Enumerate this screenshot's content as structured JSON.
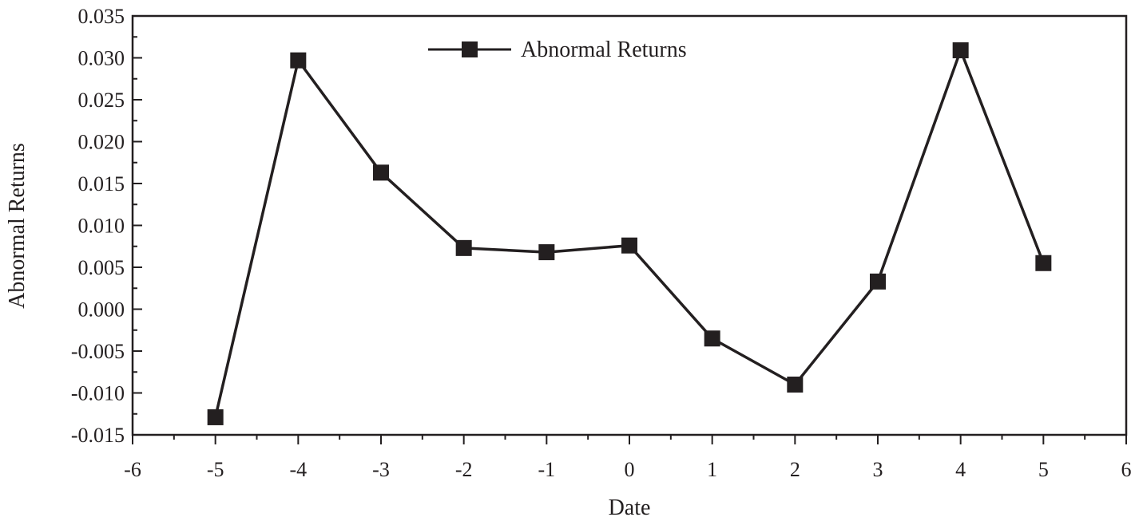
{
  "chart_data": {
    "type": "line",
    "xlabel": "Date",
    "ylabel": "Abnormal Returns",
    "xlim": [
      -6,
      6
    ],
    "ylim": [
      -0.015,
      0.035
    ],
    "x_ticks": [
      "-6",
      "-5",
      "-4",
      "-3",
      "-2",
      "-1",
      "0",
      "1",
      "2",
      "3",
      "4",
      "5",
      "6"
    ],
    "y_ticks": [
      "-0.015",
      "-0.010",
      "-0.005",
      "0.000",
      "0.005",
      "0.010",
      "0.015",
      "0.020",
      "0.025",
      "0.030",
      "0.035"
    ],
    "legend": {
      "position": "top-center"
    },
    "grid": false,
    "color": "#231f20",
    "series": [
      {
        "name": "Abnormal Returns",
        "marker": "square",
        "x": [
          -5,
          -4,
          -3,
          -2,
          -1,
          0,
          1,
          2,
          3,
          4,
          5
        ],
        "y": [
          -0.0129,
          0.0297,
          0.0163,
          0.0073,
          0.0068,
          0.0076,
          -0.0035,
          -0.009,
          0.0033,
          0.0309,
          0.0055
        ]
      }
    ]
  }
}
